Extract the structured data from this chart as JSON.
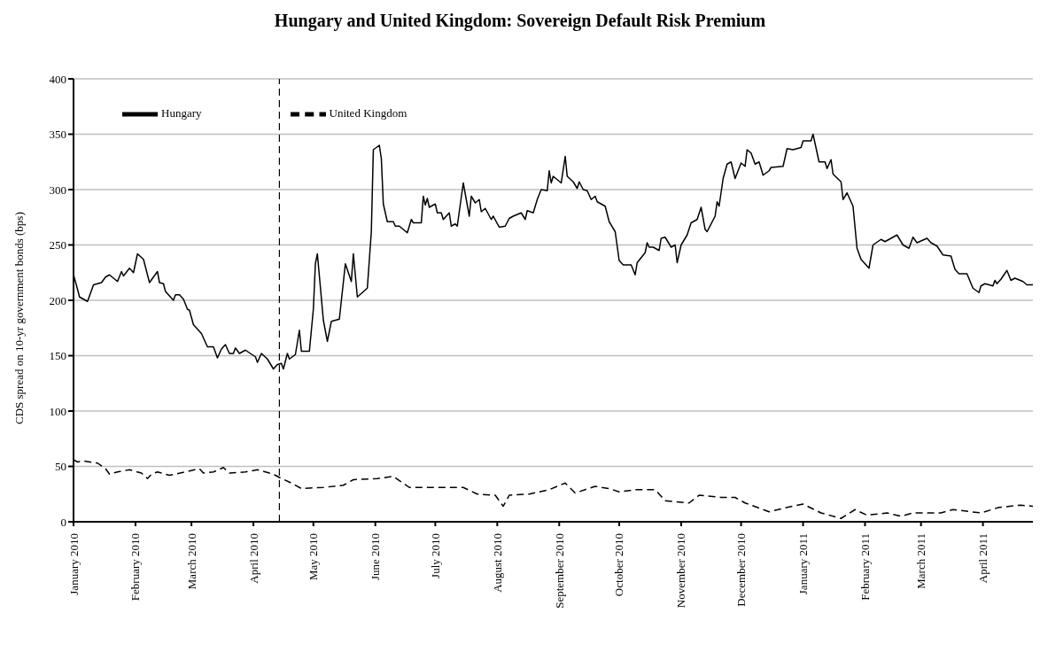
{
  "chart_data": {
    "type": "line",
    "title": "Hungary and United Kingdom: Sovereign Default Risk Premium",
    "ylabel": "CDS spread on 10-yr government bonds (bps)",
    "xlim": [
      "2010-01-01",
      "2011-04-26"
    ],
    "xticks": [
      {
        "value": "2010-01-01",
        "label": "January 2010"
      },
      {
        "value": "2010-02-01",
        "label": "February 2010"
      },
      {
        "value": "2010-03-01",
        "label": "March 2010"
      },
      {
        "value": "2010-04-01",
        "label": "April 2010"
      },
      {
        "value": "2010-05-01",
        "label": "May 2010"
      },
      {
        "value": "2010-06-01",
        "label": "June 2010"
      },
      {
        "value": "2010-07-01",
        "label": "July 2010"
      },
      {
        "value": "2010-08-01",
        "label": "August 2010"
      },
      {
        "value": "2010-09-01",
        "label": "September 2010"
      },
      {
        "value": "2010-10-01",
        "label": "October 2010"
      },
      {
        "value": "2010-11-01",
        "label": "November 2010"
      },
      {
        "value": "2010-12-01",
        "label": "December 2010"
      },
      {
        "value": "2011-01-01",
        "label": "January 2011"
      },
      {
        "value": "2011-02-01",
        "label": "February 2011"
      },
      {
        "value": "2011-03-01",
        "label": "March 2011"
      },
      {
        "value": "2011-04-01",
        "label": "April 2011"
      }
    ],
    "ylim": [
      0,
      400
    ],
    "yticks": [
      0,
      50,
      100,
      150,
      200,
      250,
      300,
      350,
      400
    ],
    "grid": "y",
    "legend": "top left",
    "marker": "none",
    "ref_lines": [
      {
        "axis": "x",
        "value": "2010-04-14",
        "color": "#000000",
        "line_style": "dashed"
      }
    ],
    "series": [
      {
        "name": "Hungary",
        "color": "#000000",
        "line_style": "solid",
        "x": [
          "2010-01-01",
          "2010-01-03",
          "2010-01-04",
          "2010-01-08",
          "2010-01-11",
          "2010-01-15",
          "2010-01-17",
          "2010-01-19",
          "2010-01-23",
          "2010-01-25",
          "2010-01-26",
          "2010-01-29",
          "2010-01-31",
          "2010-02-02",
          "2010-02-05",
          "2010-02-08",
          "2010-02-12",
          "2010-02-13",
          "2010-02-15",
          "2010-02-16",
          "2010-02-20",
          "2010-02-21",
          "2010-02-23",
          "2010-02-25",
          "2010-02-27",
          "2010-02-28",
          "2010-03-02",
          "2010-03-06",
          "2010-03-09",
          "2010-03-12",
          "2010-03-14",
          "2010-03-16",
          "2010-03-18",
          "2010-03-20",
          "2010-03-22",
          "2010-03-23",
          "2010-03-25",
          "2010-03-28",
          "2010-04-02",
          "2010-04-03",
          "2010-04-05",
          "2010-04-08",
          "2010-04-11",
          "2010-04-13",
          "2010-04-15",
          "2010-04-16",
          "2010-04-18",
          "2010-04-19",
          "2010-04-22",
          "2010-04-24",
          "2010-04-25",
          "2010-04-29",
          "2010-05-01",
          "2010-05-02",
          "2010-05-03",
          "2010-05-06",
          "2010-05-08",
          "2010-05-10",
          "2010-05-14",
          "2010-05-17",
          "2010-05-20",
          "2010-05-21",
          "2010-05-23",
          "2010-05-28",
          "2010-05-30",
          "2010-05-31",
          "2010-06-03",
          "2010-06-04",
          "2010-06-05",
          "2010-06-07",
          "2010-06-10",
          "2010-06-11",
          "2010-06-13",
          "2010-06-17",
          "2010-06-19",
          "2010-06-20",
          "2010-06-24",
          "2010-06-25",
          "2010-06-26",
          "2010-06-27",
          "2010-06-28",
          "2010-07-01",
          "2010-07-02",
          "2010-07-04",
          "2010-07-05",
          "2010-07-08",
          "2010-07-09",
          "2010-07-11",
          "2010-07-12",
          "2010-07-15",
          "2010-07-18",
          "2010-07-19",
          "2010-07-21",
          "2010-07-23",
          "2010-07-24",
          "2010-07-26",
          "2010-07-29",
          "2010-07-30",
          "2010-08-02",
          "2010-08-05",
          "2010-08-07",
          "2010-08-09",
          "2010-08-13",
          "2010-08-15",
          "2010-08-16",
          "2010-08-19",
          "2010-08-21",
          "2010-08-23",
          "2010-08-26",
          "2010-08-27",
          "2010-08-28",
          "2010-08-29",
          "2010-09-02",
          "2010-09-04",
          "2010-09-05",
          "2010-09-08",
          "2010-09-10",
          "2010-09-11",
          "2010-09-13",
          "2010-09-15",
          "2010-09-17",
          "2010-09-19",
          "2010-09-20",
          "2010-09-24",
          "2010-09-26",
          "2010-09-29",
          "2010-10-01",
          "2010-10-03",
          "2010-10-07",
          "2010-10-09",
          "2010-10-10",
          "2010-10-14",
          "2010-10-15",
          "2010-10-16",
          "2010-10-18",
          "2010-10-21",
          "2010-10-22",
          "2010-10-24",
          "2010-10-27",
          "2010-10-29",
          "2010-10-30",
          "2010-11-01",
          "2010-11-04",
          "2010-11-06",
          "2010-11-09",
          "2010-11-11",
          "2010-11-13",
          "2010-11-14",
          "2010-11-18",
          "2010-11-19",
          "2010-11-20",
          "2010-11-22",
          "2010-11-24",
          "2010-11-26",
          "2010-11-28",
          "2010-12-01",
          "2010-12-03",
          "2010-12-04",
          "2010-12-06",
          "2010-12-08",
          "2010-12-10",
          "2010-12-12",
          "2010-12-15",
          "2010-12-16",
          "2010-12-22",
          "2010-12-24",
          "2010-12-27",
          "2010-12-31",
          "2011-01-01",
          "2011-01-05",
          "2011-01-06",
          "2011-01-09",
          "2011-01-12",
          "2011-01-13",
          "2011-01-15",
          "2011-01-16",
          "2011-01-20",
          "2011-01-21",
          "2011-01-23",
          "2011-01-26",
          "2011-01-28",
          "2011-01-30",
          "2011-02-03",
          "2011-02-05",
          "2011-02-09",
          "2011-02-11",
          "2011-02-13",
          "2011-02-17",
          "2011-02-20",
          "2011-02-23",
          "2011-02-24",
          "2011-02-25",
          "2011-02-27",
          "2011-03-04",
          "2011-03-06",
          "2011-03-09",
          "2011-03-12",
          "2011-03-16",
          "2011-03-18",
          "2011-03-20",
          "2011-03-24",
          "2011-03-27",
          "2011-03-30",
          "2011-03-31",
          "2011-04-02",
          "2011-04-06",
          "2011-04-07",
          "2011-04-08",
          "2011-04-10",
          "2011-04-13",
          "2011-04-15",
          "2011-04-17",
          "2011-04-21",
          "2011-04-23",
          "2011-04-26"
        ],
        "values": [
          223,
          210,
          203,
          199,
          214,
          216,
          221,
          223,
          217,
          226,
          222,
          229,
          225,
          242,
          237,
          216,
          226,
          216,
          215,
          208,
          200,
          205,
          205,
          201,
          192,
          191,
          178,
          170,
          158,
          158,
          148,
          156,
          160,
          152,
          152,
          157,
          152,
          155,
          149,
          144,
          152,
          147,
          138,
          142,
          143,
          138,
          152,
          147,
          151,
          173,
          154,
          154,
          192,
          233,
          242,
          182,
          163,
          181,
          183,
          233,
          217,
          242,
          203,
          211,
          262,
          336,
          340,
          328,
          287,
          271,
          271,
          267,
          267,
          261,
          273,
          270,
          270,
          294,
          286,
          292,
          284,
          287,
          279,
          279,
          273,
          279,
          267,
          269,
          267,
          306,
          276,
          294,
          288,
          291,
          280,
          283,
          273,
          276,
          266,
          267,
          274,
          276,
          279,
          273,
          281,
          279,
          291,
          300,
          299,
          317,
          306,
          312,
          306,
          330,
          312,
          307,
          301,
          307,
          300,
          299,
          291,
          294,
          289,
          285,
          271,
          262,
          236,
          232,
          232,
          223,
          234,
          243,
          252,
          248,
          248,
          245,
          256,
          257,
          248,
          250,
          234,
          250,
          259,
          270,
          273,
          284,
          264,
          262,
          276,
          289,
          285,
          310,
          323,
          325,
          310,
          324,
          321,
          336,
          333,
          323,
          325,
          313,
          317,
          320,
          321,
          337,
          336,
          338,
          344,
          344,
          350,
          325,
          325,
          319,
          327,
          314,
          307,
          291,
          297,
          285,
          247,
          237,
          229,
          250,
          255,
          253,
          255,
          259,
          250,
          247,
          252,
          257,
          252,
          256,
          252,
          249,
          241,
          240,
          228,
          224,
          224,
          211,
          207,
          213,
          215,
          213,
          218,
          215,
          219,
          227,
          218,
          220,
          217,
          214,
          214
        ]
      },
      {
        "name": "United Kingdom",
        "color": "#000000",
        "line_style": "dashed",
        "x": [
          "2010-01-01",
          "2010-01-03",
          "2010-01-06",
          "2010-01-13",
          "2010-01-17",
          "2010-01-19",
          "2010-01-23",
          "2010-01-29",
          "2010-02-04",
          "2010-02-07",
          "2010-02-09",
          "2010-02-12",
          "2010-02-18",
          "2010-02-26",
          "2010-03-05",
          "2010-03-07",
          "2010-03-12",
          "2010-03-17",
          "2010-03-20",
          "2010-03-28",
          "2010-04-03",
          "2010-04-09",
          "2010-04-12",
          "2010-04-14",
          "2010-04-20",
          "2010-04-25",
          "2010-05-06",
          "2010-05-16",
          "2010-05-21",
          "2010-06-02",
          "2010-06-10",
          "2010-06-18",
          "2010-06-30",
          "2010-07-15",
          "2010-07-22",
          "2010-07-31",
          "2010-08-04",
          "2010-08-07",
          "2010-08-17",
          "2010-08-27",
          "2010-09-04",
          "2010-09-09",
          "2010-09-19",
          "2010-09-26",
          "2010-10-01",
          "2010-10-09",
          "2010-10-19",
          "2010-10-24",
          "2010-11-05",
          "2010-11-10",
          "2010-11-21",
          "2010-11-28",
          "2010-12-03",
          "2010-12-15",
          "2010-12-24",
          "2011-01-01",
          "2011-01-10",
          "2011-01-20",
          "2011-01-27",
          "2011-02-02",
          "2011-02-12",
          "2011-02-19",
          "2011-02-25",
          "2011-03-11",
          "2011-03-17",
          "2011-03-31",
          "2011-04-09",
          "2011-04-20",
          "2011-04-26"
        ],
        "values": [
          56,
          54,
          55,
          53,
          48,
          43,
          45,
          47,
          44,
          39,
          43,
          45,
          42,
          45,
          48,
          44,
          45,
          49,
          44,
          45,
          47,
          44,
          42,
          40,
          35,
          30,
          31,
          33,
          38,
          39,
          41,
          31,
          31,
          31,
          25,
          24,
          14,
          24,
          25,
          29,
          35,
          26,
          32,
          30,
          27,
          29,
          29,
          19,
          17,
          24,
          22,
          22,
          17,
          9,
          13,
          16,
          8,
          3,
          11,
          6,
          8,
          5,
          8,
          8,
          11,
          8,
          13,
          15,
          14
        ]
      }
    ]
  }
}
